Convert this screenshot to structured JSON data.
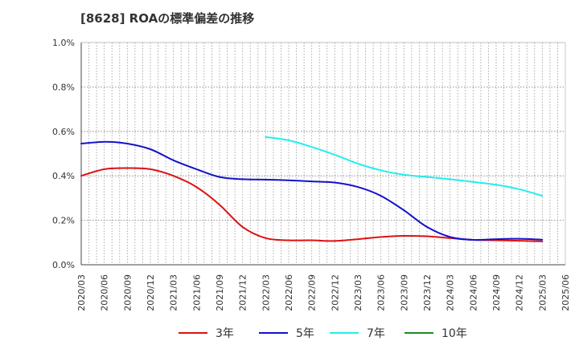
{
  "title": "[8628]  ROAの標準偏差の推移",
  "chart_data": {
    "type": "line",
    "title": "[8628]  ROAの標準偏差の推移",
    "xlabel": "",
    "ylabel": "",
    "ylim": [
      0,
      1.0
    ],
    "yticks": [
      "0.0%",
      "0.2%",
      "0.4%",
      "0.6%",
      "0.8%",
      "1.0%"
    ],
    "ytick_values": [
      0,
      0.2,
      0.4,
      0.6,
      0.8,
      1.0
    ],
    "xticks": [
      "2020/03",
      "2020/06",
      "2020/09",
      "2020/12",
      "2021/03",
      "2021/06",
      "2021/09",
      "2021/12",
      "2022/03",
      "2022/06",
      "2022/09",
      "2022/12",
      "2023/03",
      "2023/06",
      "2023/09",
      "2023/12",
      "2024/03",
      "2024/06",
      "2024/09",
      "2024/12",
      "2025/03",
      "2025/06"
    ],
    "grid": true,
    "legend_position": "bottom",
    "series": [
      {
        "name": "3年",
        "color": "#dd1111",
        "x": [
          "2020/03",
          "2020/06",
          "2020/09",
          "2020/12",
          "2021/03",
          "2021/06",
          "2021/09",
          "2021/12",
          "2022/03",
          "2022/06",
          "2022/09",
          "2022/12",
          "2023/03",
          "2023/06",
          "2023/09",
          "2023/12",
          "2024/03",
          "2024/06",
          "2024/09",
          "2024/12",
          "2025/03"
        ],
        "values": [
          0.4,
          0.43,
          0.435,
          0.43,
          0.4,
          0.35,
          0.27,
          0.17,
          0.12,
          0.11,
          0.11,
          0.107,
          0.115,
          0.125,
          0.13,
          0.128,
          0.12,
          0.112,
          0.11,
          0.108,
          0.105
        ]
      },
      {
        "name": "5年",
        "color": "#1111cc",
        "x": [
          "2020/03",
          "2020/06",
          "2020/09",
          "2020/12",
          "2021/03",
          "2021/06",
          "2021/09",
          "2021/12",
          "2022/03",
          "2022/06",
          "2022/09",
          "2022/12",
          "2023/03",
          "2023/06",
          "2023/09",
          "2023/12",
          "2024/03",
          "2024/06",
          "2024/09",
          "2024/12",
          "2025/03"
        ],
        "values": [
          0.545,
          0.553,
          0.545,
          0.52,
          0.47,
          0.43,
          0.395,
          0.385,
          0.383,
          0.38,
          0.375,
          0.37,
          0.35,
          0.31,
          0.245,
          0.17,
          0.125,
          0.112,
          0.115,
          0.117,
          0.113
        ]
      },
      {
        "name": "7年",
        "color": "#22eeee",
        "x": [
          "2022/03",
          "2022/06",
          "2022/09",
          "2022/12",
          "2023/03",
          "2023/06",
          "2023/09",
          "2023/12",
          "2024/03",
          "2024/06",
          "2024/09",
          "2024/12",
          "2025/03"
        ],
        "values": [
          0.575,
          0.56,
          0.53,
          0.495,
          0.455,
          0.425,
          0.405,
          0.395,
          0.385,
          0.373,
          0.36,
          0.34,
          0.31
        ]
      },
      {
        "name": "10年",
        "color": "#228822",
        "x": [],
        "values": []
      }
    ]
  }
}
